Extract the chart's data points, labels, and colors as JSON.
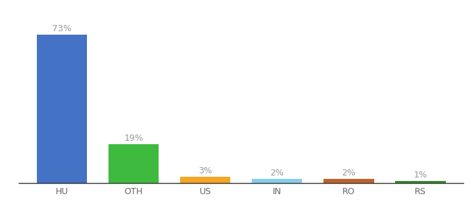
{
  "categories": [
    "HU",
    "OTH",
    "US",
    "IN",
    "RO",
    "RS"
  ],
  "values": [
    73,
    19,
    3,
    2,
    2,
    1
  ],
  "labels": [
    "73%",
    "19%",
    "3%",
    "2%",
    "2%",
    "1%"
  ],
  "bar_colors": [
    "#4472C4",
    "#3EBA3E",
    "#F5A623",
    "#87CEEB",
    "#C0622D",
    "#3A8C2F"
  ],
  "background_color": "#ffffff",
  "label_color": "#999999",
  "label_fontsize": 9,
  "tick_fontsize": 9,
  "ylim": [
    0,
    82
  ],
  "bar_width": 0.7
}
